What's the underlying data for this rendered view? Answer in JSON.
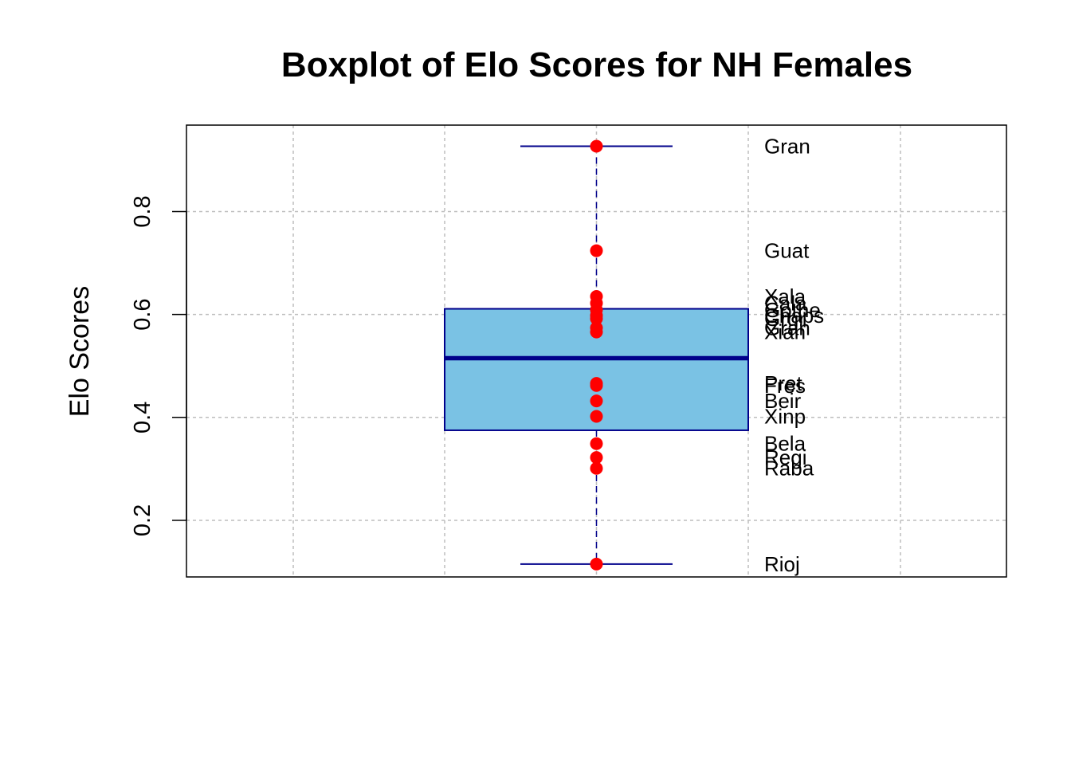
{
  "chart_data": {
    "type": "box",
    "title": "Boxplot of Elo Scores for NH Females",
    "xlabel": "",
    "ylabel": "Elo Scores",
    "ylim": [
      0.09,
      0.968
    ],
    "yticks": [
      0.2,
      0.4,
      0.6,
      0.8
    ],
    "ytick_labels": [
      "0.2",
      "0.4",
      "0.6",
      "0.8"
    ],
    "grid": true,
    "box": {
      "whisker_low": 0.115,
      "q1": 0.375,
      "median": 0.515,
      "q3": 0.611,
      "whisker_high": 0.927
    },
    "points": [
      {
        "label": "Gran",
        "value": 0.927
      },
      {
        "label": "Guat",
        "value": 0.724
      },
      {
        "label": "Xala",
        "value": 0.635
      },
      {
        "label": "Cala",
        "value": 0.622
      },
      {
        "label": "Gothe",
        "value": 0.609
      },
      {
        "label": "Chaps",
        "value": 0.598
      },
      {
        "label": "Grgr",
        "value": 0.592
      },
      {
        "label": "Gran",
        "value": 0.574
      },
      {
        "label": "Xian",
        "value": 0.566
      },
      {
        "label": "Pret",
        "value": 0.466
      },
      {
        "label": "Fres",
        "value": 0.462
      },
      {
        "label": "Beir",
        "value": 0.432
      },
      {
        "label": "Xinp",
        "value": 0.402
      },
      {
        "label": "Bela",
        "value": 0.349
      },
      {
        "label": "Regi",
        "value": 0.322
      },
      {
        "label": "Raba",
        "value": 0.301
      },
      {
        "label": "Rioj",
        "value": 0.115
      }
    ],
    "colors": {
      "box_fill": "#7AC2E4",
      "box_border": "#00008B",
      "median": "#00008B",
      "whisker": "#00008B",
      "points": "#FF0000",
      "grid": "#BEBEBE"
    }
  }
}
